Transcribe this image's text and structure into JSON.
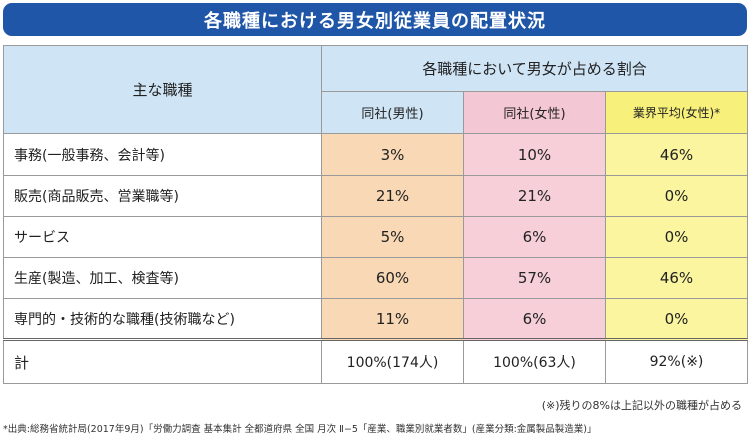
{
  "title": "各職種における男女別従業員の配置状況",
  "header": {
    "job_type": "主な職種",
    "ratio_group": "各職種において男女が占める割合",
    "male": "同社(男性)",
    "female": "同社(女性)",
    "industry": "業界平均(女性)*"
  },
  "rows": [
    {
      "label": "事務(一般事務、会計等)",
      "male": "3%",
      "female": "10%",
      "industry": "46%"
    },
    {
      "label": "販売(商品販売、営業職等)",
      "male": "21%",
      "female": "21%",
      "industry": "0%"
    },
    {
      "label": "サービス",
      "male": "5%",
      "female": "6%",
      "industry": "0%"
    },
    {
      "label": "生産(製造、加工、検査等)",
      "male": "60%",
      "female": "57%",
      "industry": "46%"
    },
    {
      "label": "専門的・技術的な職種(技術職など)",
      "male": "11%",
      "female": "6%",
      "industry": "0%"
    }
  ],
  "total": {
    "label": "計",
    "male": "100%(174人)",
    "female": "100%(63人)",
    "industry": "92%(※)"
  },
  "note": "(※)残りの8%は上記以外の職種が占める",
  "source": "*出典:総務省統計局(2017年9月)「労働力調査 基本集計 全都道府県 全国 月次 Ⅱ−5「産業、職業別就業者数」(産業分類:金属製品製造業)」",
  "colors": {
    "title_bg": "#1f56a8",
    "header_bg": "#cfe4f5",
    "male_bg": "#f9d8b5",
    "female_bg": "#f7cfd9",
    "industry_bg": "#faf59e"
  }
}
